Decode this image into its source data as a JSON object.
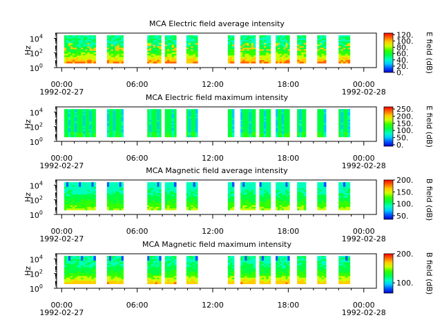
{
  "colorscale_stops": [
    "#ff0000",
    "#ff6600",
    "#ffcc00",
    "#ccff00",
    "#33ff00",
    "#00ff44",
    "#00ffbb",
    "#00ccff",
    "#0055ff",
    "#0000cc"
  ],
  "chart_data": [
    {
      "type": "heatmap",
      "title": "MCA  Electric field average intensity",
      "ylabel": "Hz",
      "ytick_labels": [
        {
          "base": "10",
          "exp": "0"
        },
        {
          "base": "10",
          "exp": "2"
        },
        {
          "base": "10",
          "exp": "4"
        }
      ],
      "ylim_log10": [
        0,
        4.7
      ],
      "colorbar_label": "E field (dB)",
      "colorbar_range": [
        0,
        125
      ],
      "colorbar_ticks": [
        {
          "v": 0,
          "label": "0."
        },
        {
          "v": 20,
          "label": "20."
        },
        {
          "v": 40,
          "label": "40."
        },
        {
          "v": 60,
          "label": "60."
        },
        {
          "v": 80,
          "label": "80."
        },
        {
          "v": 100,
          "label": "100."
        },
        {
          "v": 120,
          "label": "120."
        }
      ],
      "profile": "eavg"
    },
    {
      "type": "heatmap",
      "title": "MCA  Electric field maximum intensity",
      "ylabel": "Hz",
      "ytick_labels": [
        {
          "base": "10",
          "exp": "0"
        },
        {
          "base": "10",
          "exp": "2"
        },
        {
          "base": "10",
          "exp": "4"
        }
      ],
      "ylim_log10": [
        0,
        4.7
      ],
      "colorbar_label": "E field (dB)",
      "colorbar_range": [
        -10,
        265
      ],
      "colorbar_ticks": [
        {
          "v": 0,
          "label": "0."
        },
        {
          "v": 50,
          "label": "50."
        },
        {
          "v": 100,
          "label": "100."
        },
        {
          "v": 150,
          "label": "150."
        },
        {
          "v": 200,
          "label": "200."
        },
        {
          "v": 250,
          "label": "250."
        }
      ],
      "profile": "emax"
    },
    {
      "type": "heatmap",
      "title": "MCA  Magnetic field average intensity",
      "ylabel": "Hz",
      "ytick_labels": [
        {
          "base": "10",
          "exp": "0"
        },
        {
          "base": "10",
          "exp": "2"
        },
        {
          "base": "10",
          "exp": "4"
        }
      ],
      "ylim_log10": [
        0,
        4.7
      ],
      "colorbar_label": "B field (dB)",
      "colorbar_range": [
        35,
        200
      ],
      "colorbar_ticks": [
        {
          "v": 50,
          "label": "50."
        },
        {
          "v": 100,
          "label": "100."
        },
        {
          "v": 150,
          "label": "150."
        },
        {
          "v": 200,
          "label": "200."
        }
      ],
      "profile": "bavg"
    },
    {
      "type": "heatmap",
      "title": "MCA  Magnetic field maximum intensity",
      "ylabel": "Hz",
      "ytick_labels": [
        {
          "base": "10",
          "exp": "0"
        },
        {
          "base": "10",
          "exp": "2"
        },
        {
          "base": "10",
          "exp": "4"
        }
      ],
      "ylim_log10": [
        0,
        4.7
      ],
      "colorbar_label": "B field (dB)",
      "colorbar_range": [
        65,
        200
      ],
      "colorbar_ticks": [
        {
          "v": 100,
          "label": "100."
        },
        {
          "v": 200,
          "label": "200."
        }
      ],
      "profile": "bmax"
    }
  ],
  "shared_x": {
    "xlim_hours": [
      -0.4,
      25
    ],
    "major_ticks": [
      {
        "h": 0,
        "time": "00:00",
        "date": "1992-02-27"
      },
      {
        "h": 6,
        "time": "06:00",
        "date": ""
      },
      {
        "h": 12,
        "time": "12:00",
        "date": ""
      },
      {
        "h": 18,
        "time": "18:00",
        "date": ""
      },
      {
        "h": 24,
        "time": "00:00",
        "date": "1992-02-28"
      }
    ],
    "minor_ticks_hours": [
      1,
      2,
      3,
      4,
      5,
      7,
      8,
      9,
      10,
      11,
      13,
      14,
      15,
      16,
      17,
      19,
      20,
      21,
      22,
      23
    ],
    "data_blocks_hours": [
      [
        0.2,
        2.7
      ],
      [
        3.6,
        4.9
      ],
      [
        6.8,
        7.9
      ],
      [
        8.2,
        9.1
      ],
      [
        9.9,
        10.8
      ],
      [
        13.2,
        13.7
      ],
      [
        14.2,
        15.4
      ],
      [
        15.7,
        16.6
      ],
      [
        17.0,
        18.1
      ],
      [
        18.7,
        19.4
      ],
      [
        20.3,
        21.0
      ],
      [
        22.0,
        22.9
      ]
    ]
  }
}
